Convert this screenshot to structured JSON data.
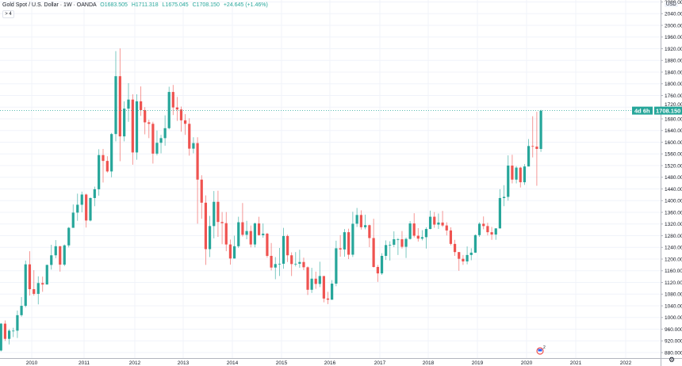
{
  "header": {
    "symbol": "Gold Spot / U.S. Dollar",
    "interval": "1W",
    "source": "OANDA",
    "open": "O1683.505",
    "high": "H1711.318",
    "low": "L1675.045",
    "close": "C1708.150",
    "change": "+24.645 (+1.46%)",
    "collapse_label": "> 4"
  },
  "price_axis": {
    "currency": "USD",
    "last_price_label": "1708.150",
    "countdown_label": "4d 6h",
    "ticks": [
      "2080.000",
      "2040.000",
      "2000.000",
      "1960.000",
      "1920.000",
      "1880.000",
      "1840.000",
      "1800.000",
      "1760.000",
      "1720.000",
      "1680.000",
      "1640.000",
      "1600.000",
      "1560.000",
      "1520.000",
      "1480.000",
      "1440.000",
      "1400.000",
      "1360.000",
      "1320.000",
      "1280.000",
      "1240.000",
      "1200.000",
      "1160.000",
      "1120.000",
      "1080.000",
      "1040.000",
      "1000.000",
      "960.000",
      "920.000",
      "880.000"
    ]
  },
  "icons": {
    "settings": "gear-icon",
    "event": "flag-event-icon"
  },
  "event_badge_count": "2",
  "chart_data": {
    "type": "candlestick",
    "title": "Gold Spot / U.S. Dollar · 1W · OANDA",
    "x_ticks": [
      "2010",
      "2011",
      "2012",
      "2013",
      "2014",
      "2015",
      "2016",
      "2017",
      "2018",
      "2019",
      "2020",
      "2021",
      "2022"
    ],
    "ylim": [
      870,
      2090
    ],
    "last_price": 1708.15,
    "colors": {
      "up": "#26a69a",
      "down": "#ef5350",
      "grid": "#f0f3fa",
      "last_line": "#26a69a"
    },
    "grid": true,
    "candles_ohlc": [
      [
        "2009-05",
        887,
        981,
        884,
        979
      ],
      [
        "2009-06",
        979,
        990,
        920,
        927
      ],
      [
        "2009-07",
        927,
        960,
        908,
        955
      ],
      [
        "2009-08",
        955,
        965,
        933,
        955
      ],
      [
        "2009-09",
        955,
        1024,
        930,
        1008
      ],
      [
        "2009-10",
        1008,
        1070,
        1003,
        1040
      ],
      [
        "2009-11",
        1040,
        1195,
        1035,
        1182
      ],
      [
        "2009-12",
        1182,
        1227,
        1075,
        1097
      ],
      [
        "2010-01",
        1097,
        1162,
        1075,
        1081
      ],
      [
        "2010-02",
        1081,
        1141,
        1045,
        1118
      ],
      [
        "2010-03",
        1118,
        1140,
        1088,
        1113
      ],
      [
        "2010-04",
        1113,
        1181,
        1113,
        1180
      ],
      [
        "2010-05",
        1180,
        1249,
        1164,
        1213
      ],
      [
        "2010-06",
        1213,
        1265,
        1203,
        1244
      ],
      [
        "2010-07",
        1244,
        1245,
        1157,
        1181
      ],
      [
        "2010-08",
        1181,
        1250,
        1176,
        1247
      ],
      [
        "2010-09",
        1247,
        1310,
        1240,
        1307
      ],
      [
        "2010-10",
        1307,
        1387,
        1314,
        1359
      ],
      [
        "2010-11",
        1359,
        1424,
        1331,
        1386
      ],
      [
        "2010-12",
        1386,
        1431,
        1360,
        1421
      ],
      [
        "2011-01",
        1421,
        1424,
        1308,
        1332
      ],
      [
        "2011-02",
        1332,
        1411,
        1329,
        1409
      ],
      [
        "2011-03",
        1409,
        1448,
        1381,
        1439
      ],
      [
        "2011-04",
        1439,
        1576,
        1417,
        1556
      ],
      [
        "2011-05",
        1556,
        1577,
        1462,
        1536
      ],
      [
        "2011-06",
        1536,
        1552,
        1496,
        1500
      ],
      [
        "2011-07",
        1500,
        1632,
        1480,
        1628
      ],
      [
        "2011-08",
        1628,
        1912,
        1603,
        1826
      ],
      [
        "2011-09",
        1826,
        1921,
        1535,
        1620
      ],
      [
        "2011-10",
        1620,
        1740,
        1603,
        1715
      ],
      [
        "2011-11",
        1715,
        1802,
        1670,
        1746
      ],
      [
        "2011-12",
        1746,
        1764,
        1523,
        1565
      ],
      [
        "2012-01",
        1565,
        1764,
        1540,
        1740
      ],
      [
        "2012-02",
        1740,
        1791,
        1690,
        1710
      ],
      [
        "2012-03",
        1710,
        1720,
        1627,
        1668
      ],
      [
        "2012-04",
        1668,
        1677,
        1614,
        1663
      ],
      [
        "2012-05",
        1663,
        1670,
        1527,
        1561
      ],
      [
        "2012-06",
        1561,
        1640,
        1555,
        1598
      ],
      [
        "2012-07",
        1598,
        1625,
        1562,
        1614
      ],
      [
        "2012-08",
        1614,
        1692,
        1588,
        1648
      ],
      [
        "2012-09",
        1648,
        1790,
        1644,
        1772
      ],
      [
        "2012-10",
        1772,
        1796,
        1693,
        1719
      ],
      [
        "2012-11",
        1719,
        1755,
        1673,
        1712
      ],
      [
        "2012-12",
        1712,
        1722,
        1636,
        1675
      ],
      [
        "2013-01",
        1675,
        1696,
        1625,
        1663
      ],
      [
        "2013-02",
        1663,
        1682,
        1554,
        1578
      ],
      [
        "2013-03",
        1578,
        1617,
        1562,
        1597
      ],
      [
        "2013-04",
        1597,
        1617,
        1321,
        1472
      ],
      [
        "2013-05",
        1472,
        1487,
        1338,
        1393
      ],
      [
        "2013-06",
        1393,
        1418,
        1180,
        1234
      ],
      [
        "2013-07",
        1234,
        1348,
        1207,
        1313
      ],
      [
        "2013-08",
        1313,
        1433,
        1271,
        1396
      ],
      [
        "2013-09",
        1396,
        1434,
        1276,
        1327
      ],
      [
        "2013-10",
        1327,
        1361,
        1251,
        1323
      ],
      [
        "2013-11",
        1323,
        1361,
        1227,
        1250
      ],
      [
        "2013-12",
        1250,
        1267,
        1181,
        1202
      ],
      [
        "2014-01",
        1202,
        1280,
        1202,
        1244
      ],
      [
        "2014-02",
        1244,
        1345,
        1238,
        1326
      ],
      [
        "2014-03",
        1326,
        1392,
        1277,
        1283
      ],
      [
        "2014-04",
        1283,
        1331,
        1268,
        1296
      ],
      [
        "2014-05",
        1296,
        1315,
        1240,
        1250
      ],
      [
        "2014-06",
        1250,
        1325,
        1240,
        1322
      ],
      [
        "2014-07",
        1322,
        1345,
        1280,
        1282
      ],
      [
        "2014-08",
        1282,
        1322,
        1273,
        1287
      ],
      [
        "2014-09",
        1287,
        1290,
        1205,
        1211
      ],
      [
        "2014-10",
        1211,
        1255,
        1161,
        1171
      ],
      [
        "2014-11",
        1171,
        1207,
        1131,
        1183
      ],
      [
        "2014-12",
        1183,
        1238,
        1142,
        1184
      ],
      [
        "2015-01",
        1184,
        1307,
        1167,
        1279
      ],
      [
        "2015-02",
        1279,
        1284,
        1190,
        1213
      ],
      [
        "2015-03",
        1213,
        1223,
        1142,
        1183
      ],
      [
        "2015-04",
        1183,
        1224,
        1175,
        1184
      ],
      [
        "2015-05",
        1184,
        1232,
        1170,
        1190
      ],
      [
        "2015-06",
        1190,
        1205,
        1162,
        1172
      ],
      [
        "2015-07",
        1172,
        1175,
        1077,
        1095
      ],
      [
        "2015-08",
        1095,
        1170,
        1084,
        1133
      ],
      [
        "2015-09",
        1133,
        1157,
        1098,
        1115
      ],
      [
        "2015-10",
        1115,
        1191,
        1104,
        1142
      ],
      [
        "2015-11",
        1142,
        1142,
        1052,
        1065
      ],
      [
        "2015-12",
        1065,
        1088,
        1046,
        1061
      ],
      [
        "2016-01",
        1061,
        1128,
        1061,
        1116
      ],
      [
        "2016-02",
        1116,
        1263,
        1107,
        1237
      ],
      [
        "2016-03",
        1237,
        1282,
        1208,
        1233
      ],
      [
        "2016-04",
        1233,
        1303,
        1208,
        1292
      ],
      [
        "2016-05",
        1292,
        1304,
        1200,
        1215
      ],
      [
        "2016-06",
        1215,
        1362,
        1207,
        1321
      ],
      [
        "2016-07",
        1321,
        1375,
        1310,
        1351
      ],
      [
        "2016-08",
        1351,
        1367,
        1301,
        1309
      ],
      [
        "2016-09",
        1309,
        1352,
        1302,
        1316
      ],
      [
        "2016-10",
        1316,
        1318,
        1241,
        1272
      ],
      [
        "2016-11",
        1272,
        1338,
        1171,
        1173
      ],
      [
        "2016-12",
        1173,
        1180,
        1122,
        1151
      ],
      [
        "2017-01",
        1151,
        1220,
        1146,
        1211
      ],
      [
        "2017-02",
        1211,
        1264,
        1197,
        1248
      ],
      [
        "2017-03",
        1248,
        1261,
        1195,
        1249
      ],
      [
        "2017-04",
        1249,
        1295,
        1241,
        1268
      ],
      [
        "2017-05",
        1268,
        1272,
        1214,
        1268
      ],
      [
        "2017-06",
        1268,
        1296,
        1236,
        1242
      ],
      [
        "2017-07",
        1242,
        1274,
        1204,
        1269
      ],
      [
        "2017-08",
        1269,
        1330,
        1267,
        1322
      ],
      [
        "2017-09",
        1322,
        1357,
        1274,
        1280
      ],
      [
        "2017-10",
        1280,
        1306,
        1260,
        1270
      ],
      [
        "2017-11",
        1270,
        1299,
        1264,
        1275
      ],
      [
        "2017-12",
        1275,
        1309,
        1236,
        1303
      ],
      [
        "2018-01",
        1303,
        1366,
        1302,
        1345
      ],
      [
        "2018-02",
        1345,
        1361,
        1307,
        1318
      ],
      [
        "2018-03",
        1318,
        1356,
        1303,
        1325
      ],
      [
        "2018-04",
        1325,
        1365,
        1310,
        1315
      ],
      [
        "2018-05",
        1315,
        1326,
        1281,
        1298
      ],
      [
        "2018-06",
        1298,
        1309,
        1247,
        1252
      ],
      [
        "2018-07",
        1252,
        1266,
        1211,
        1224
      ],
      [
        "2018-08",
        1224,
        1224,
        1160,
        1201
      ],
      [
        "2018-09",
        1201,
        1214,
        1180,
        1192
      ],
      [
        "2018-10",
        1192,
        1243,
        1182,
        1214
      ],
      [
        "2018-11",
        1214,
        1237,
        1196,
        1222
      ],
      [
        "2018-12",
        1222,
        1284,
        1221,
        1282
      ],
      [
        "2019-01",
        1282,
        1326,
        1276,
        1321
      ],
      [
        "2019-02",
        1321,
        1346,
        1302,
        1313
      ],
      [
        "2019-03",
        1313,
        1324,
        1281,
        1292
      ],
      [
        "2019-04",
        1292,
        1310,
        1266,
        1284
      ],
      [
        "2019-05",
        1284,
        1306,
        1266,
        1305
      ],
      [
        "2019-06",
        1305,
        1439,
        1305,
        1409
      ],
      [
        "2019-07",
        1409,
        1453,
        1381,
        1413
      ],
      [
        "2019-08",
        1413,
        1555,
        1400,
        1520
      ],
      [
        "2019-09",
        1520,
        1557,
        1459,
        1472
      ],
      [
        "2019-10",
        1472,
        1518,
        1459,
        1513
      ],
      [
        "2019-11",
        1513,
        1516,
        1445,
        1463
      ],
      [
        "2019-12",
        1463,
        1525,
        1454,
        1517
      ],
      [
        "2020-01",
        1517,
        1611,
        1517,
        1587
      ],
      [
        "2020-02",
        1587,
        1689,
        1548,
        1585
      ],
      [
        "2020-03",
        1585,
        1704,
        1451,
        1577
      ],
      [
        "2020-04",
        1577,
        1711,
        1567,
        1708
      ]
    ]
  }
}
